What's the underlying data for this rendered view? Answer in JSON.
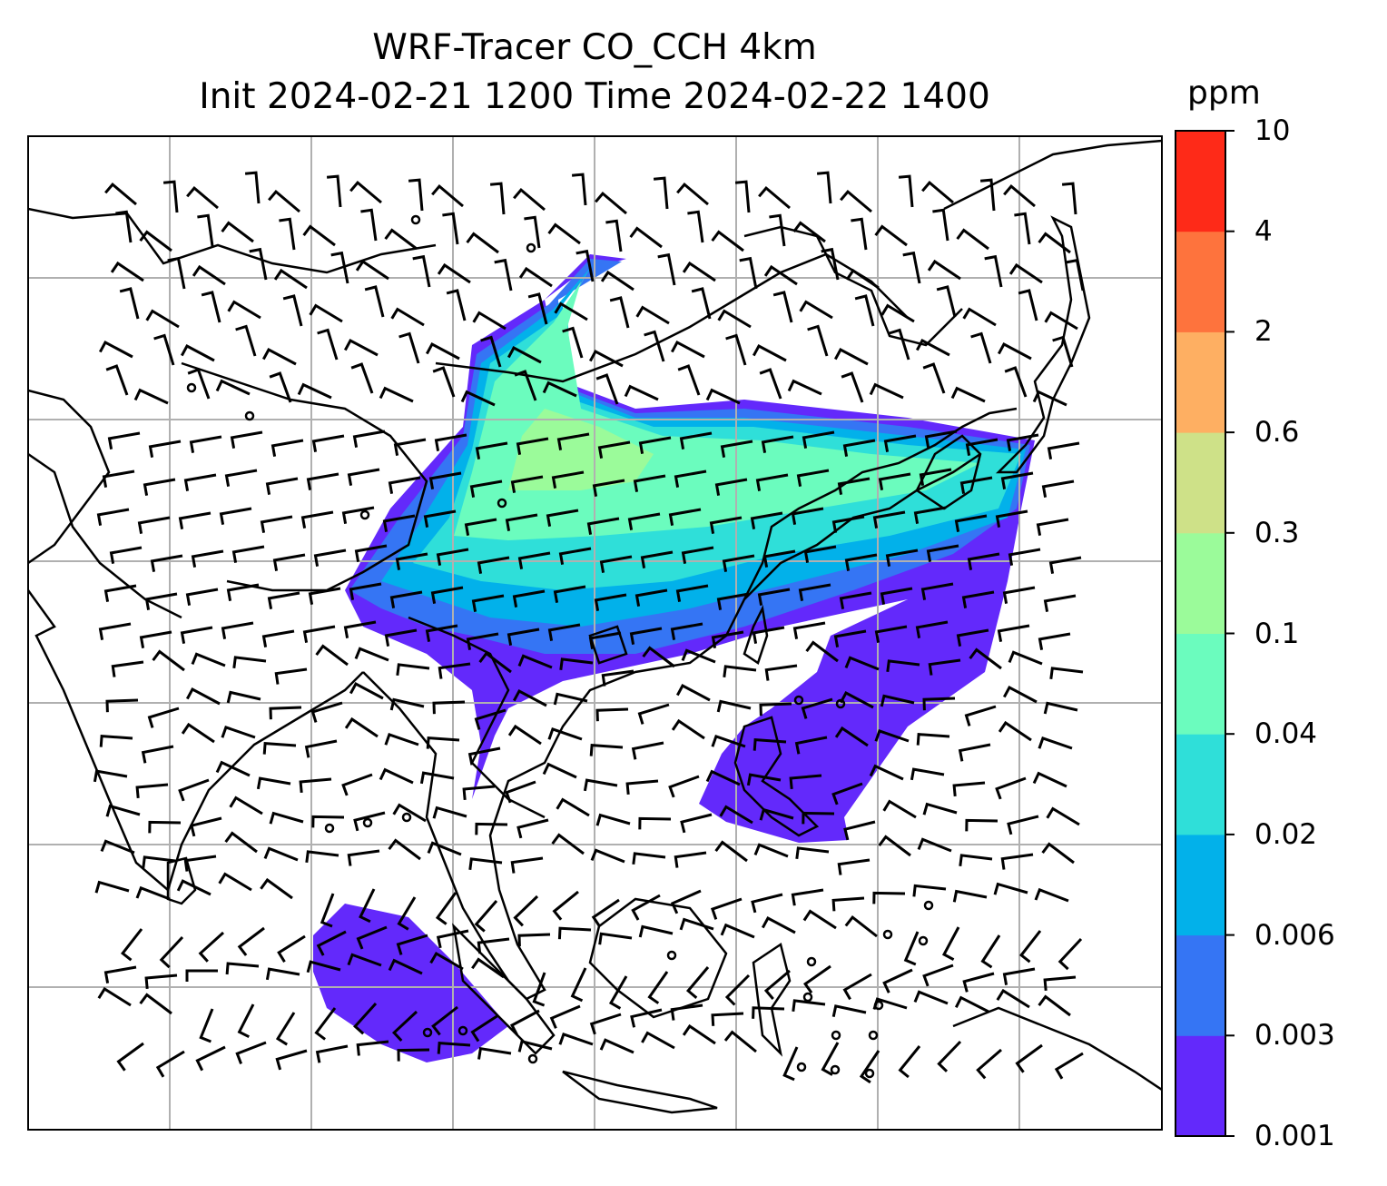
{
  "title": {
    "line1": "WRF-Tracer CO_CCH 4km",
    "line2": "Init 2024-02-21 1200 Time 2024-02-22 1400"
  },
  "colorbar": {
    "unit": "ppm",
    "levels": [
      "0.001",
      "0.003",
      "0.006",
      "0.02",
      "0.04",
      "0.1",
      "0.3",
      "0.6",
      "2",
      "4",
      "10"
    ],
    "colors": [
      "#6329fb",
      "#3575f4",
      "#02b1ea",
      "#2fdfd9",
      "#6bfcbe",
      "#9bfb9a",
      "#cee188",
      "#feaf62",
      "#fe733d",
      "#fe2a18"
    ]
  },
  "map": {
    "features": [
      "coastlines",
      "country-borders",
      "gridlines",
      "wind-barbs",
      "CO-tracer-concentration"
    ],
    "gridline_color": "#b0b0b0"
  }
}
